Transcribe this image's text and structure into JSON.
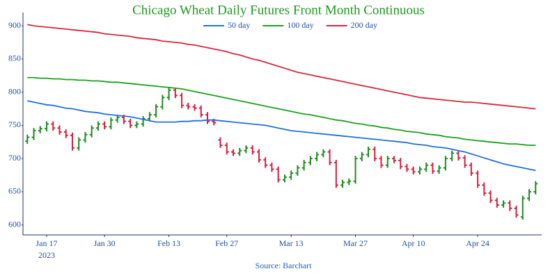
{
  "chart_data": {
    "type": "ohlc",
    "title": "Chicago Wheat Daily Futures Front Month Continuous",
    "title_color": "#1a9a1a",
    "source": "Source: Barchart",
    "source_color": "#1f5fc8",
    "x": [
      "2023-01-11",
      "2023-01-12",
      "2023-01-13",
      "2023-01-17",
      "2023-01-18",
      "2023-01-19",
      "2023-01-20",
      "2023-01-23",
      "2023-01-24",
      "2023-01-25",
      "2023-01-26",
      "2023-01-27",
      "2023-01-30",
      "2023-01-31",
      "2023-02-01",
      "2023-02-02",
      "2023-02-03",
      "2023-02-06",
      "2023-02-07",
      "2023-02-08",
      "2023-02-09",
      "2023-02-10",
      "2023-02-13",
      "2023-02-14",
      "2023-02-15",
      "2023-02-16",
      "2023-02-17",
      "2023-02-21",
      "2023-02-22",
      "2023-02-23",
      "2023-02-24",
      "2023-02-27",
      "2023-02-28",
      "2023-03-01",
      "2023-03-02",
      "2023-03-03",
      "2023-03-06",
      "2023-03-07",
      "2023-03-08",
      "2023-03-09",
      "2023-03-10",
      "2023-03-13",
      "2023-03-14",
      "2023-03-15",
      "2023-03-16",
      "2023-03-17",
      "2023-03-20",
      "2023-03-21",
      "2023-03-22",
      "2023-03-23",
      "2023-03-24",
      "2023-03-27",
      "2023-03-28",
      "2023-03-29",
      "2023-03-30",
      "2023-03-31",
      "2023-04-03",
      "2023-04-04",
      "2023-04-05",
      "2023-04-06",
      "2023-04-10",
      "2023-04-11",
      "2023-04-12",
      "2023-04-13",
      "2023-04-14",
      "2023-04-17",
      "2023-04-18",
      "2023-04-19",
      "2023-04-20",
      "2023-04-21",
      "2023-04-24",
      "2023-04-25",
      "2023-04-26",
      "2023-04-27",
      "2023-04-28",
      "2023-05-01",
      "2023-05-02",
      "2023-05-03",
      "2023-05-04",
      "2023-05-05"
    ],
    "open": [
      726,
      732,
      742,
      745,
      752,
      746,
      740,
      735,
      716,
      728,
      736,
      746,
      752,
      748,
      758,
      762,
      756,
      750,
      752,
      760,
      766,
      778,
      792,
      803,
      795,
      780,
      778,
      776,
      766,
      756,
      728,
      720,
      710,
      708,
      712,
      716,
      710,
      698,
      690,
      684,
      668,
      672,
      678,
      686,
      694,
      700,
      706,
      710,
      694,
      660,
      664,
      666,
      700,
      706,
      714,
      700,
      690,
      700,
      697,
      688,
      684,
      680,
      684,
      690,
      681,
      686,
      700,
      708,
      701,
      690,
      678,
      660,
      648,
      637,
      630,
      633,
      625,
      612,
      640,
      650
    ],
    "high": [
      736,
      746,
      749,
      756,
      756,
      750,
      744,
      739,
      732,
      740,
      750,
      756,
      756,
      762,
      766,
      766,
      760,
      756,
      764,
      770,
      782,
      796,
      807,
      807,
      799,
      784,
      782,
      780,
      770,
      760,
      732,
      724,
      714,
      716,
      720,
      720,
      714,
      702,
      694,
      688,
      676,
      682,
      690,
      698,
      704,
      710,
      714,
      714,
      698,
      668,
      670,
      704,
      710,
      718,
      718,
      704,
      704,
      704,
      701,
      692,
      688,
      688,
      694,
      694,
      690,
      704,
      712,
      712,
      705,
      694,
      682,
      664,
      652,
      641,
      637,
      637,
      629,
      644,
      654,
      666
    ],
    "low": [
      722,
      728,
      738,
      741,
      742,
      736,
      731,
      712,
      712,
      724,
      732,
      742,
      744,
      744,
      754,
      752,
      746,
      746,
      748,
      756,
      762,
      774,
      788,
      791,
      776,
      774,
      772,
      762,
      752,
      750,
      716,
      706,
      704,
      704,
      708,
      706,
      694,
      686,
      680,
      664,
      664,
      668,
      674,
      682,
      690,
      696,
      702,
      690,
      656,
      656,
      660,
      662,
      696,
      702,
      696,
      686,
      686,
      693,
      684,
      680,
      676,
      676,
      680,
      677,
      677,
      682,
      696,
      697,
      686,
      674,
      656,
      644,
      633,
      626,
      626,
      621,
      611,
      608,
      636,
      646
    ],
    "close": [
      732,
      742,
      745,
      752,
      746,
      740,
      735,
      716,
      728,
      736,
      746,
      752,
      748,
      758,
      762,
      756,
      750,
      752,
      760,
      766,
      778,
      792,
      803,
      795,
      780,
      778,
      776,
      766,
      756,
      754,
      720,
      710,
      708,
      712,
      716,
      710,
      698,
      690,
      684,
      668,
      672,
      678,
      686,
      694,
      700,
      706,
      710,
      694,
      660,
      664,
      666,
      700,
      706,
      714,
      700,
      690,
      700,
      697,
      688,
      684,
      680,
      684,
      690,
      681,
      686,
      700,
      708,
      701,
      690,
      678,
      660,
      648,
      637,
      630,
      633,
      625,
      615,
      640,
      650,
      662
    ],
    "increasing_color": "#1e8c1e",
    "decreasing_color": "#d81e3c",
    "series": [
      {
        "name": "50 day",
        "color": "#1f6fe0",
        "values": [
          787,
          785,
          783,
          781,
          780,
          778,
          776,
          775,
          773,
          771,
          770,
          769,
          767,
          766,
          765,
          764,
          763,
          761,
          759,
          757,
          755,
          755,
          755,
          755,
          756,
          756,
          757,
          757,
          758,
          758,
          757,
          756,
          755,
          754,
          753,
          752,
          751,
          750,
          748,
          746,
          744,
          742,
          741,
          740,
          739,
          738,
          737,
          736,
          735,
          734,
          733,
          732,
          731,
          730,
          729,
          728,
          727,
          726,
          725,
          724,
          722,
          721,
          720,
          718,
          717,
          716,
          714,
          712,
          710,
          707,
          704,
          701,
          698,
          695,
          692,
          690,
          688,
          686,
          684,
          682
        ]
      },
      {
        "name": "100 day",
        "color": "#19a019",
        "values": [
          822,
          822,
          821,
          821,
          820,
          820,
          819,
          819,
          818,
          818,
          817,
          817,
          816,
          815,
          815,
          814,
          813,
          812,
          811,
          810,
          809,
          808,
          807,
          806,
          805,
          803,
          801,
          799,
          797,
          795,
          793,
          791,
          789,
          787,
          785,
          783,
          781,
          779,
          777,
          775,
          773,
          771,
          769,
          767,
          766,
          764,
          762,
          760,
          758,
          757,
          755,
          753,
          752,
          750,
          749,
          747,
          746,
          744,
          743,
          741,
          740,
          739,
          737,
          736,
          735,
          733,
          732,
          731,
          729,
          728,
          727,
          726,
          725,
          724,
          723,
          722,
          722,
          721,
          720,
          720
        ]
      },
      {
        "name": "200 day",
        "color": "#d7263d",
        "values": [
          902,
          900,
          899,
          898,
          897,
          896,
          895,
          894,
          893,
          892,
          891,
          890,
          888,
          887,
          886,
          885,
          884,
          882,
          881,
          880,
          879,
          877,
          876,
          875,
          874,
          872,
          871,
          869,
          867,
          865,
          863,
          861,
          858,
          856,
          853,
          850,
          848,
          845,
          842,
          839,
          836,
          833,
          830,
          828,
          826,
          824,
          822,
          820,
          818,
          816,
          814,
          812,
          810,
          808,
          806,
          804,
          802,
          800,
          798,
          796,
          794,
          792,
          791,
          790,
          789,
          788,
          787,
          786,
          785,
          785,
          784,
          783,
          782,
          781,
          780,
          779,
          778,
          777,
          776,
          775
        ]
      }
    ],
    "xticks": [
      {
        "value": "2023-01-17",
        "label": "Jan 17"
      },
      {
        "value": "2023-01-30",
        "label": "Jan 30"
      },
      {
        "value": "2023-02-13",
        "label": "Feb 13"
      },
      {
        "value": "2023-02-27",
        "label": "Feb 27"
      },
      {
        "value": "2023-03-13",
        "label": "Mar 13"
      },
      {
        "value": "2023-03-27",
        "label": "Mar 27"
      },
      {
        "value": "2023-04-10",
        "label": "Apr 10"
      },
      {
        "value": "2023-04-24",
        "label": "Apr 24"
      }
    ],
    "x_year_label": "2023",
    "ylim": [
      585,
      920
    ],
    "yticks": [
      600,
      650,
      700,
      750,
      800,
      850,
      900
    ],
    "grid": false
  }
}
